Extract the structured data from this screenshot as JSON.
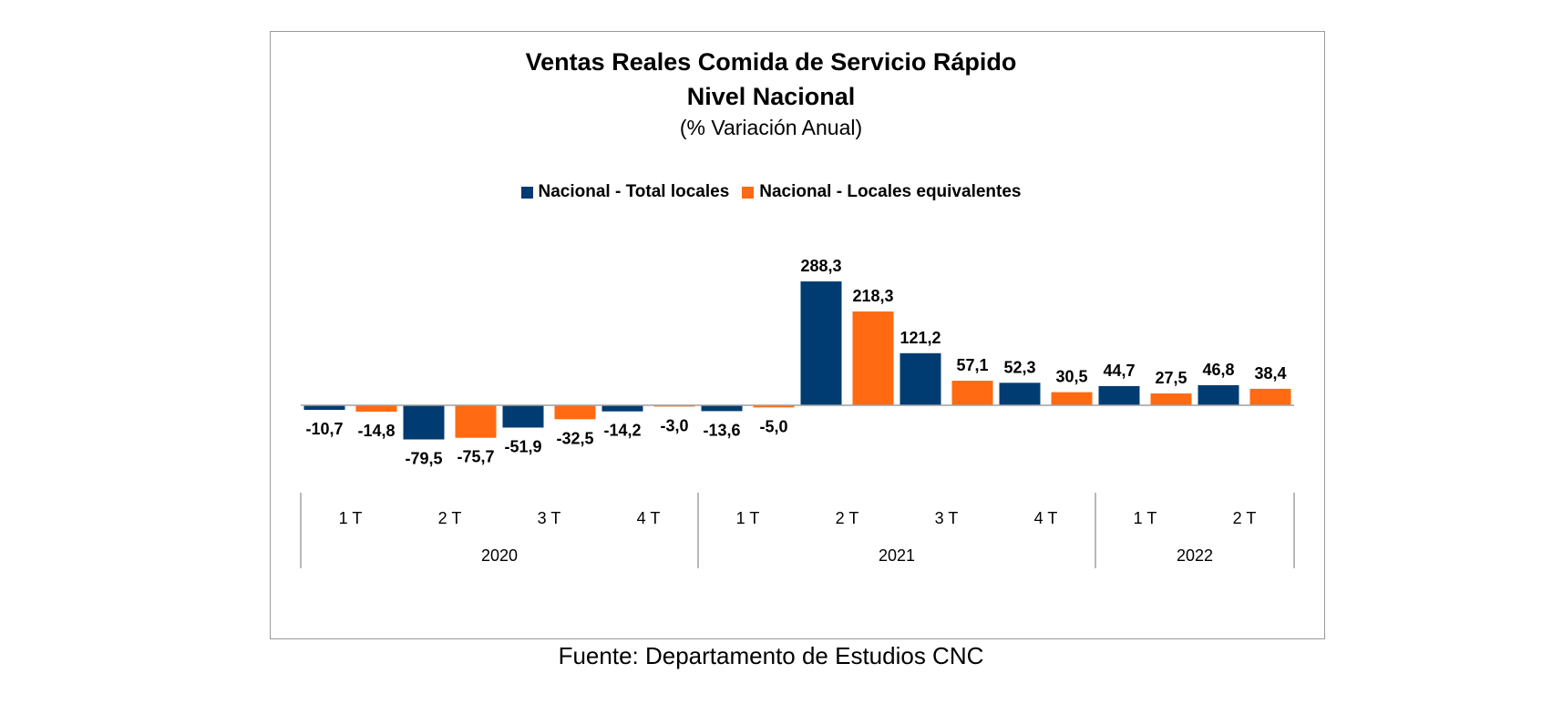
{
  "chart_data": {
    "type": "bar",
    "title": "Ventas Reales Comida de Servicio Rápido",
    "title_line2": "Nivel Nacional",
    "subtitle": "(% Variación Anual)",
    "categories": [
      "1 T",
      "2 T",
      "3 T",
      "4 T",
      "1 T",
      "2 T",
      "3 T",
      "4 T",
      "1 T",
      "2 T"
    ],
    "groups": [
      {
        "label": "2020",
        "count": 4
      },
      {
        "label": "2021",
        "count": 4
      },
      {
        "label": "2022",
        "count": 2
      }
    ],
    "series": [
      {
        "name": "Nacional - Total locales",
        "color": "#003C71",
        "values": [
          -10.7,
          -79.5,
          -51.9,
          -14.2,
          -13.6,
          288.3,
          121.2,
          52.3,
          44.7,
          46.8
        ],
        "labels": [
          "-10,7",
          "-79,5",
          "-51,9",
          "-14,2",
          "-13,6",
          "288,3",
          "121,2",
          "52,3",
          "44,7",
          "46,8"
        ]
      },
      {
        "name": "Nacional - Locales equivalentes",
        "color": "#FF6A13",
        "values": [
          -14.8,
          -75.7,
          -32.5,
          -3.0,
          -5.0,
          218.3,
          57.1,
          30.5,
          27.5,
          38.4
        ],
        "labels": [
          "-14,8",
          "-75,7",
          "-32,5",
          "-3,0",
          "-5,0",
          "218,3",
          "57,1",
          "30,5",
          "27,5",
          "38,4"
        ]
      }
    ],
    "legend_position": "top",
    "grid": false
  },
  "source": "Fuente: Departamento de Estudios CNC"
}
